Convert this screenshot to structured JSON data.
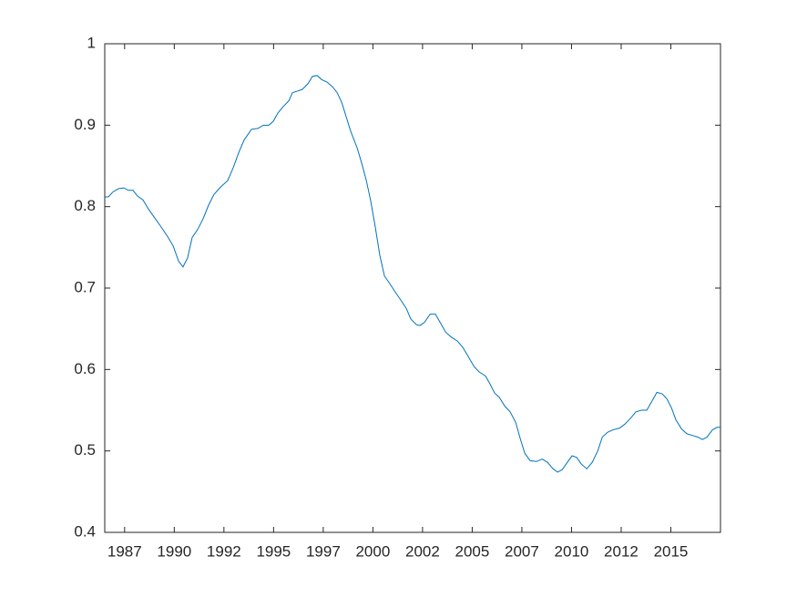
{
  "chart_data": {
    "type": "line",
    "x": [
      1986.5,
      1986.68,
      1986.91,
      1987.19,
      1987.46,
      1987.69,
      1987.92,
      1988.15,
      1988.43,
      1988.7,
      1989.02,
      1989.34,
      1989.67,
      1989.94,
      1990.22,
      1990.44,
      1990.67,
      1990.9,
      1991.18,
      1991.45,
      1991.73,
      1992.0,
      1992.33,
      1992.69,
      1992.97,
      1993.24,
      1993.52,
      1993.89,
      1994.21,
      1994.48,
      1994.76,
      1994.99,
      1995.22,
      1995.49,
      1995.77,
      1995.95,
      1996.22,
      1996.45,
      1996.73,
      1996.96,
      1997.19,
      1997.42,
      1997.69,
      1997.97,
      1998.2,
      1998.43,
      1998.66,
      1998.89,
      1999.21,
      1999.44,
      1999.67,
      1999.89,
      2000.12,
      2000.35,
      2000.58,
      2000.86,
      2001.13,
      2001.41,
      2001.68,
      2001.91,
      2002.19,
      2002.37,
      2002.6,
      2002.88,
      2003.15,
      2003.38,
      2003.66,
      2003.93,
      2004.25,
      2004.53,
      2004.8,
      2005.08,
      2005.35,
      2005.67,
      2005.9,
      2006.13,
      2006.36,
      2006.64,
      2006.91,
      2007.19,
      2007.42,
      2007.65,
      2007.92,
      2008.24,
      2008.52,
      2008.79,
      2009.07,
      2009.3,
      2009.53,
      2009.76,
      2010.03,
      2010.26,
      2010.49,
      2010.77,
      2011.04,
      2011.32,
      2011.55,
      2011.82,
      2012.1,
      2012.42,
      2012.69,
      2012.97,
      2013.24,
      2013.52,
      2013.79,
      2014.07,
      2014.3,
      2014.57,
      2014.8,
      2015.03,
      2015.26,
      2015.54,
      2015.81,
      2016.09,
      2016.36,
      2016.59,
      2016.82,
      2017.1,
      2017.33,
      2017.5
    ],
    "series": [
      {
        "color": "#0072bd",
        "values": [
          0.812,
          0.812,
          0.818,
          0.822,
          0.823,
          0.82,
          0.82,
          0.813,
          0.808,
          0.797,
          0.786,
          0.775,
          0.763,
          0.752,
          0.733,
          0.726,
          0.737,
          0.762,
          0.772,
          0.785,
          0.802,
          0.815,
          0.824,
          0.832,
          0.848,
          0.866,
          0.882,
          0.895,
          0.896,
          0.9,
          0.9,
          0.905,
          0.915,
          0.923,
          0.93,
          0.94,
          0.942,
          0.944,
          0.951,
          0.96,
          0.961,
          0.956,
          0.953,
          0.947,
          0.94,
          0.928,
          0.91,
          0.892,
          0.872,
          0.853,
          0.832,
          0.807,
          0.775,
          0.74,
          0.715,
          0.705,
          0.695,
          0.685,
          0.675,
          0.662,
          0.655,
          0.654,
          0.658,
          0.668,
          0.668,
          0.658,
          0.646,
          0.64,
          0.635,
          0.627,
          0.616,
          0.604,
          0.597,
          0.592,
          0.582,
          0.571,
          0.566,
          0.555,
          0.548,
          0.535,
          0.515,
          0.497,
          0.488,
          0.487,
          0.49,
          0.486,
          0.478,
          0.474,
          0.477,
          0.485,
          0.494,
          0.492,
          0.484,
          0.478,
          0.486,
          0.5,
          0.517,
          0.523,
          0.526,
          0.528,
          0.533,
          0.54,
          0.548,
          0.55,
          0.55,
          0.562,
          0.572,
          0.57,
          0.564,
          0.553,
          0.538,
          0.527,
          0.521,
          0.519,
          0.517,
          0.514,
          0.517,
          0.526,
          0.529,
          0.529
        ]
      }
    ],
    "xlim": [
      1986.5,
      2017.5
    ],
    "xticks": [
      {
        "value": 1987.5,
        "label": "1987"
      },
      {
        "value": 1990,
        "label": "1990"
      },
      {
        "value": 1992.5,
        "label": "1992"
      },
      {
        "value": 1995,
        "label": "1995"
      },
      {
        "value": 1997.5,
        "label": "1997"
      },
      {
        "value": 2000,
        "label": "2000"
      },
      {
        "value": 2002.5,
        "label": "2002"
      },
      {
        "value": 2005,
        "label": "2005"
      },
      {
        "value": 2007.5,
        "label": "2007"
      },
      {
        "value": 2010,
        "label": "2010"
      },
      {
        "value": 2012.5,
        "label": "2012"
      },
      {
        "value": 2015,
        "label": "2015"
      }
    ],
    "ylim": [
      0.4,
      1
    ],
    "yticks": [
      0.4,
      0.5,
      0.6,
      0.7,
      0.8,
      0.9,
      1
    ],
    "grid": false
  }
}
